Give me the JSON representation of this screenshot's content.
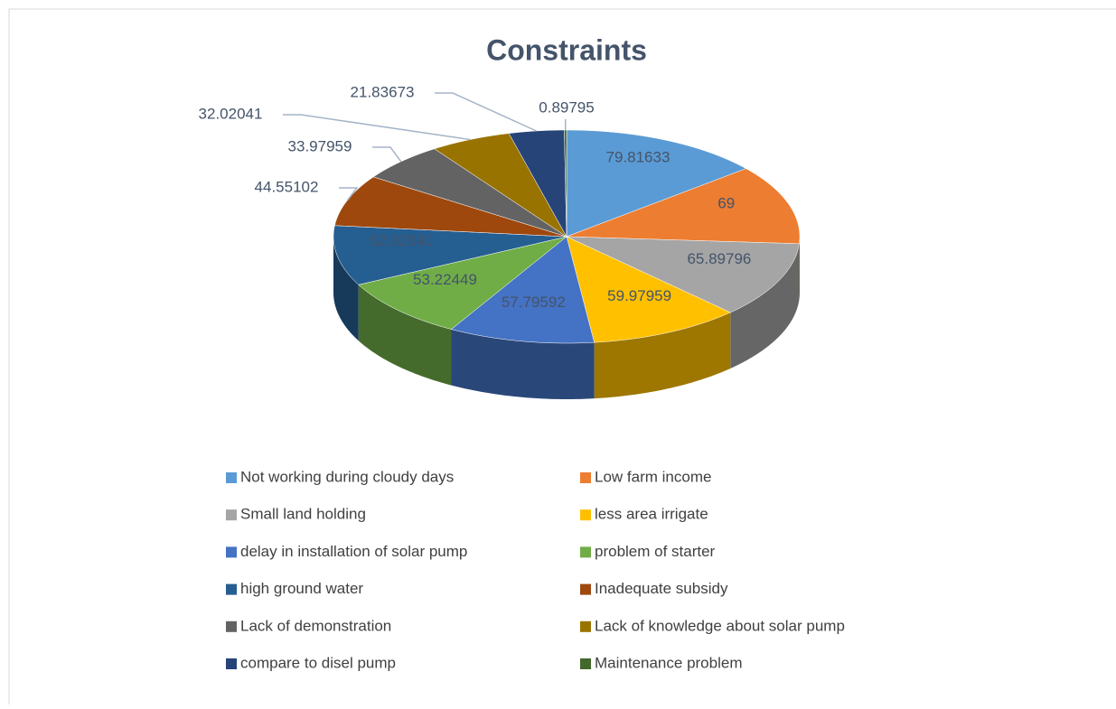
{
  "chart_data": {
    "type": "pie3d",
    "title": "Constraints",
    "categories": [
      "Not working during cloudy days",
      "Low farm income",
      "Small land holding",
      "less area irrigate",
      "delay in installation of solar pump",
      "problem of starter",
      "high ground water",
      "Inadequate subsidy",
      "Lack of demonstration",
      "Lack of knowledge about solar pump",
      "compare to disel pump",
      "Maintenance problem"
    ],
    "values": [
      79.81633,
      69,
      65.89796,
      59.97959,
      57.79592,
      53.22449,
      52.02041,
      44.55102,
      33.97959,
      32.02041,
      21.83673,
      0.89795
    ],
    "colors": [
      "#5b9bd5",
      "#ed7d31",
      "#a5a5a5",
      "#ffc000",
      "#4472c4",
      "#70ad47",
      "#255e91",
      "#9e480e",
      "#636363",
      "#997300",
      "#264478",
      "#43682b"
    ]
  }
}
